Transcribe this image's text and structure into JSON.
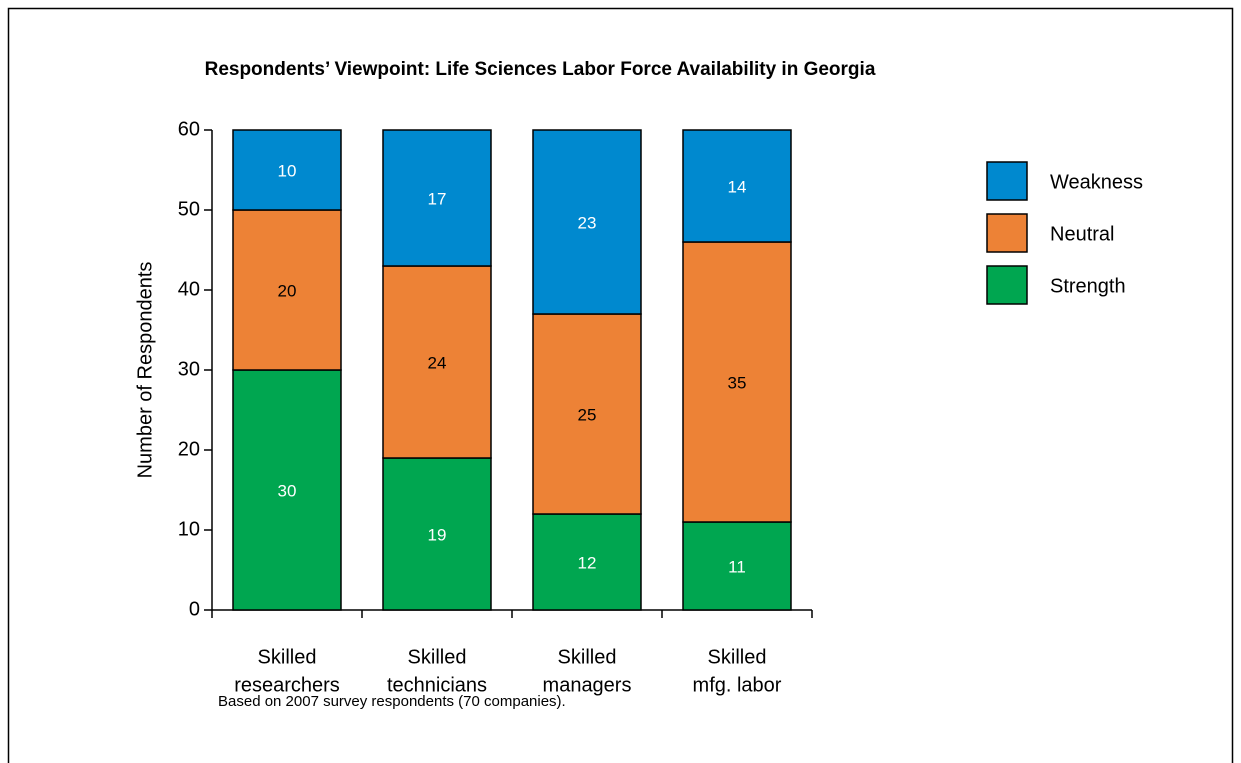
{
  "chart_data": {
    "type": "stacked_bar",
    "title": "Respondents’ Viewpoint:  Life Sciences Labor Force Availability in Georgia",
    "y_label": "Number of Respondents",
    "footnote": "Based on 2007 survey respondents (70 companies).",
    "categories": [
      [
        "Skilled",
        "researchers"
      ],
      [
        "Skilled",
        "technicians"
      ],
      [
        "Skilled",
        "managers"
      ],
      [
        "Skilled",
        "mfg. labor"
      ]
    ],
    "series": [
      {
        "name": "Strength",
        "color": "#00a650",
        "label_color": "#ffffff",
        "values": [
          30,
          19,
          12,
          11
        ]
      },
      {
        "name": "Neutral",
        "color": "#ed8236",
        "label_color": "#000000",
        "values": [
          20,
          24,
          25,
          35
        ]
      },
      {
        "name": "Weakness",
        "color": "#0089cf",
        "label_color": "#ffffff",
        "values": [
          10,
          17,
          23,
          14
        ]
      }
    ],
    "ylim": [
      0,
      60
    ],
    "yticks": [
      0,
      10,
      20,
      30,
      40,
      50,
      60
    ],
    "legend": "right"
  }
}
